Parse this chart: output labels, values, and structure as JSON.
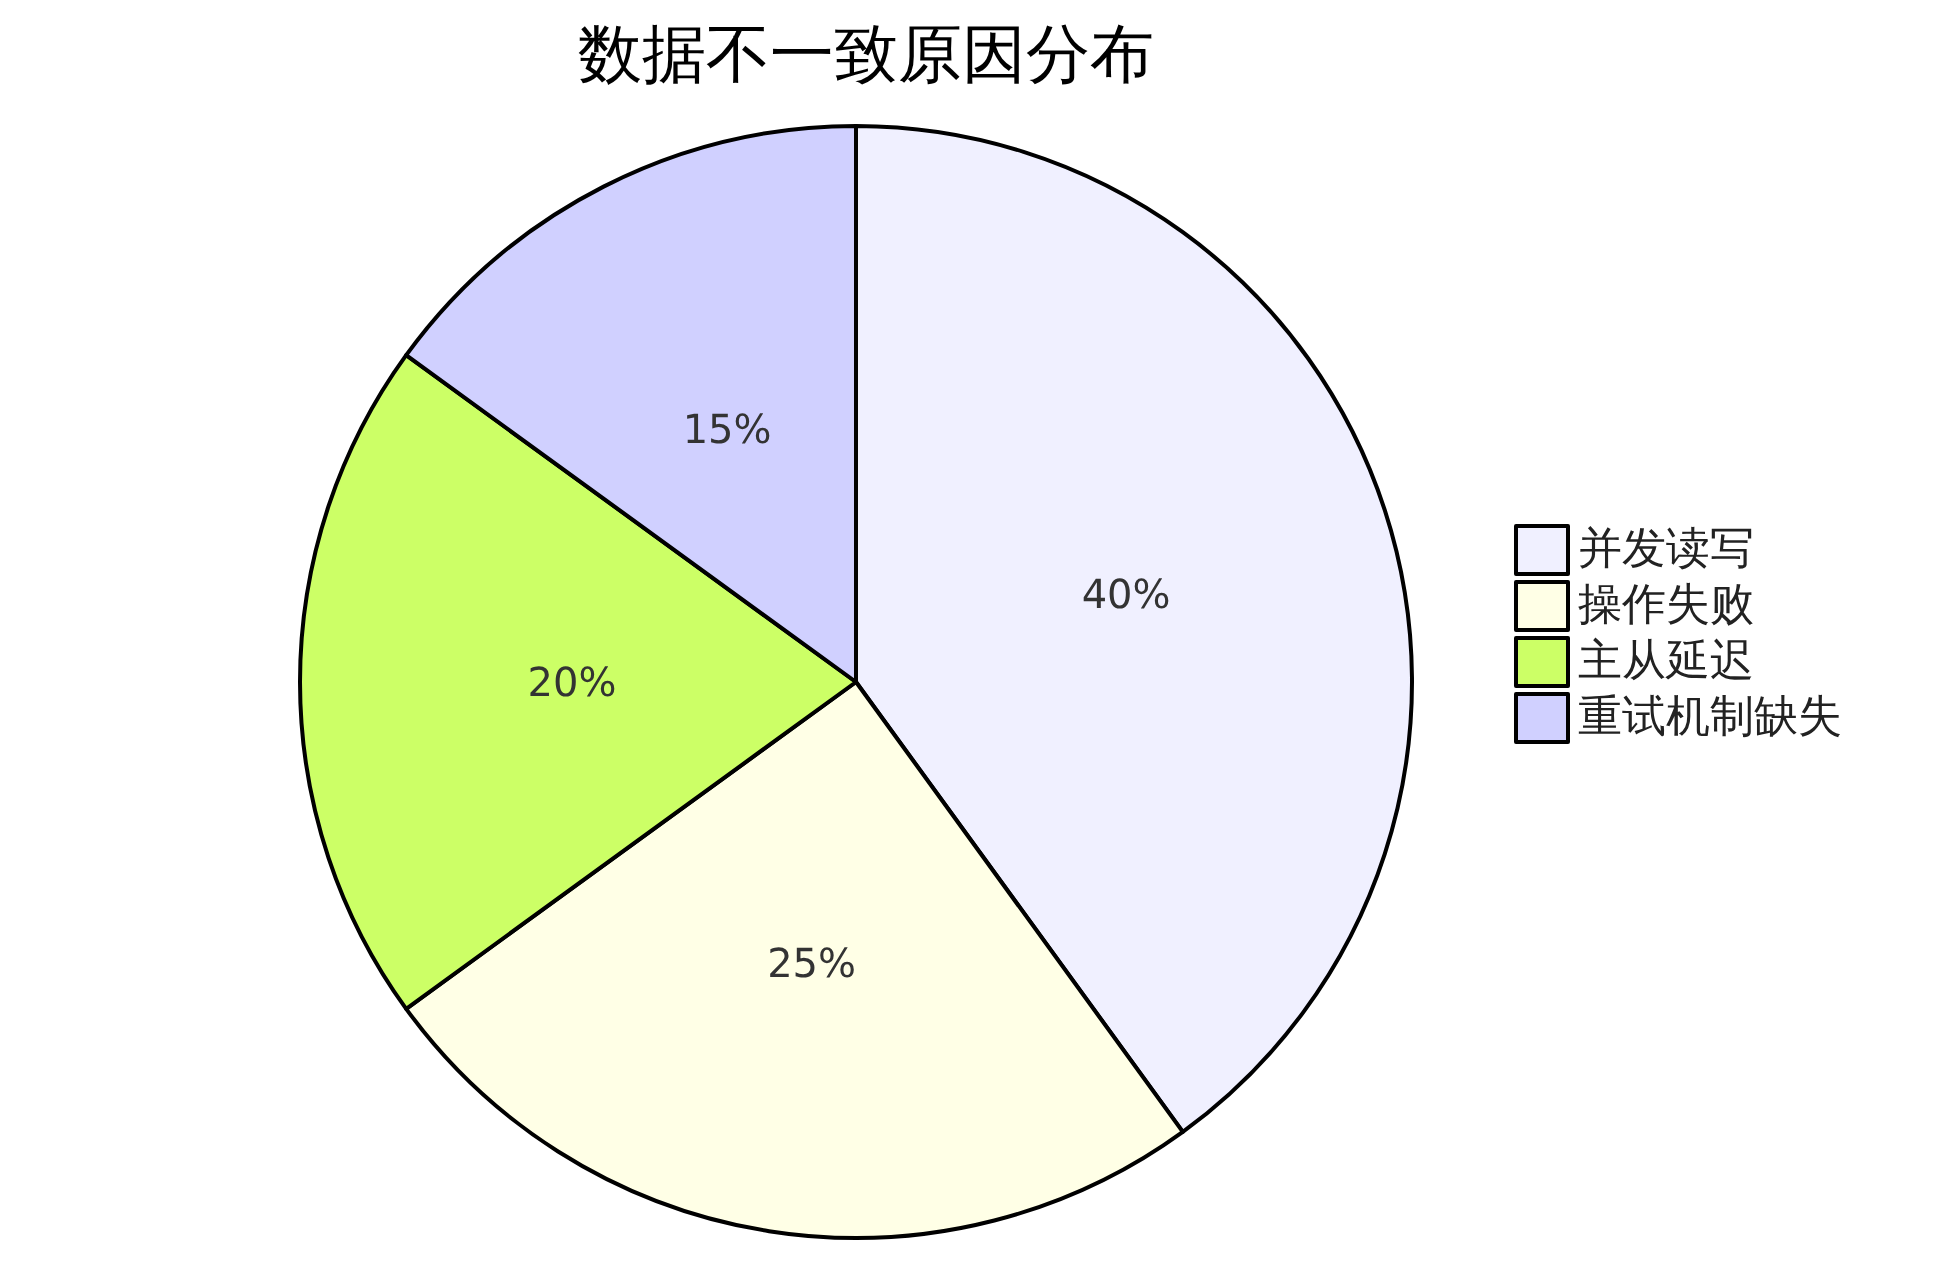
{
  "chart_data": {
    "type": "pie",
    "title": "数据不一致原因分布",
    "categories": [
      "并发读写",
      "操作失败",
      "主从延迟",
      "重试机制缺失"
    ],
    "values": [
      40,
      25,
      20,
      15
    ],
    "value_labels": [
      "40%",
      "25%",
      "20%",
      "15%"
    ],
    "colors": [
      "#f0f0ff",
      "#ffffe6",
      "#ccff66",
      "#d0d0ff"
    ],
    "legend": "right"
  }
}
